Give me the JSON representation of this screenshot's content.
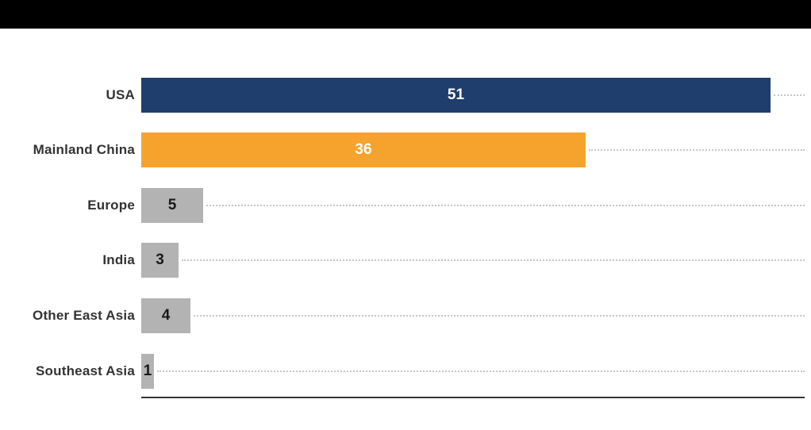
{
  "header": {
    "band_color": "#000000"
  },
  "chart_data": {
    "type": "bar",
    "orientation": "horizontal",
    "title": "",
    "xlabel": "",
    "ylabel": "",
    "categories": [
      "USA",
      "Mainland China",
      "Europe",
      "India",
      "Other East Asia",
      "Southeast Asia"
    ],
    "values": [
      51,
      36,
      5,
      3,
      4,
      1
    ],
    "bar_colors": [
      "#1f3e6d",
      "#f6a32d",
      "#b3b3b3",
      "#b3b3b3",
      "#b3b3b3",
      "#b3b3b3"
    ],
    "value_label_colors": [
      "#ffffff",
      "#ffffff",
      "#1a1a1a",
      "#1a1a1a",
      "#1a1a1a",
      "#1a1a1a"
    ],
    "xlim": [
      0,
      53.8
    ],
    "grid": false,
    "leader_lines": "dotted",
    "leader_line_color": "#c6c6c6",
    "axis_line_color": "#333333",
    "category_label_color": "#333333",
    "legend_position": "none"
  }
}
